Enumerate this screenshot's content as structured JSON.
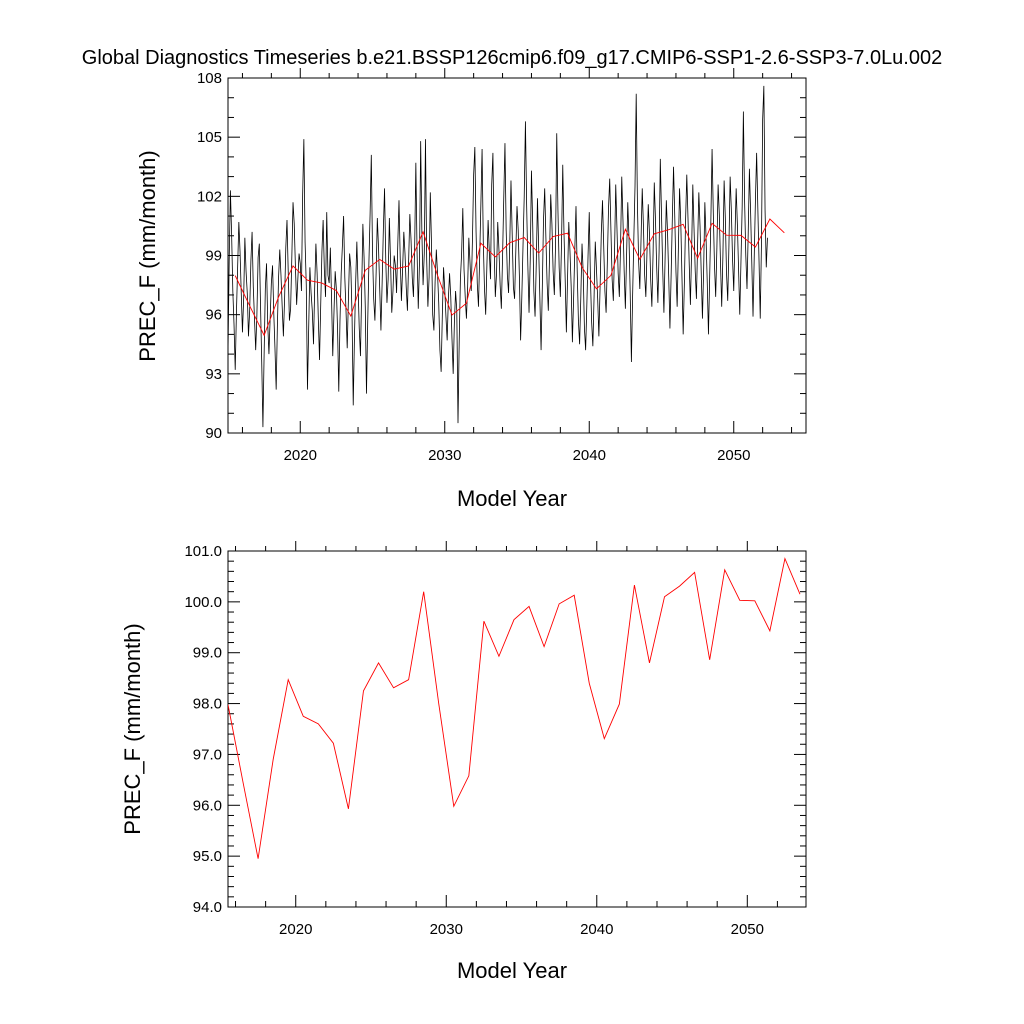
{
  "title": "Global Diagnostics Timeseries b.e21.BSSP126cmip6.f09_g17.CMIP6-SSP1-2.6-SSP3-7.0Lu.002",
  "colors": {
    "monthly": "#000000",
    "annual": "#ff0000",
    "axes": "#000000"
  },
  "chart_data": [
    {
      "type": "line",
      "title": "",
      "xlabel": "Model Year",
      "ylabel": "PREC_F (mm/month)",
      "xlim": [
        2015,
        2055
      ],
      "ylim": [
        90,
        108
      ],
      "grid": false,
      "xticks": [
        2020,
        2030,
        2040,
        2050
      ],
      "xtick_labels": [
        "2020",
        "2030",
        "2040",
        "2050"
      ],
      "yticks": [
        90,
        93,
        96,
        99,
        102,
        105,
        108
      ],
      "ytick_labels": [
        "90",
        "93",
        "96",
        "99",
        "102",
        "105",
        "108"
      ],
      "monthly_series": {
        "start_year": 2015,
        "step_years": 0.0833333,
        "values": [
          94.0,
          98.8,
          102.3,
          100.1,
          97.2,
          95.5,
          93.2,
          96.1,
          98.4,
          100.7,
          99.2,
          97.1,
          95.1,
          96.8,
          99.9,
          98.2,
          97.1,
          94.9,
          96.2,
          98.7,
          100.2,
          97.4,
          95.8,
          94.2,
          96.0,
          98.9,
          99.6,
          96.5,
          93.6,
          90.3,
          94.0,
          97.3,
          98.6,
          95.5,
          94.0,
          95.8,
          97.6,
          98.5,
          96.1,
          94.3,
          92.2,
          95.4,
          97.9,
          99.3,
          98.0,
          96.4,
          94.9,
          96.8,
          99.4,
          100.8,
          98.2,
          95.7,
          96.3,
          98.9,
          101.7,
          100.6,
          98.4,
          96.5,
          97.8,
          99.1,
          98.6,
          97.2,
          102.1,
          104.9,
          99.7,
          97.5,
          92.2,
          95.3,
          98.4,
          97.1,
          96.2,
          94.5,
          97.4,
          99.6,
          98.1,
          95.8,
          93.7,
          96.5,
          99.2,
          100.8,
          98.3,
          96.9,
          101.2,
          98.0,
          97.6,
          99.4,
          96.8,
          93.9,
          96.1,
          98.2,
          97.3,
          95.2,
          92.1,
          95.7,
          98.1,
          99.5,
          101.0,
          97.9,
          96.2,
          94.3,
          96.8,
          99.1,
          98.4,
          96.0,
          91.4,
          94.8,
          97.6,
          99.7,
          97.5,
          95.3,
          93.9,
          97.2,
          100.6,
          98.9,
          96.4,
          92.0,
          95.5,
          98.6,
          101.1,
          104.1,
          99.2,
          96.8,
          95.7,
          98.1,
          100.9,
          99.4,
          97.3,
          95.2,
          97.6,
          100.3,
          102.4,
          98.8,
          96.6,
          97.8,
          100.9,
          98.7,
          96.1,
          97.2,
          99.0,
          98.5,
          97.1,
          99.6,
          101.8,
          98.9,
          96.7,
          98.3,
          100.2,
          99.1,
          97.4,
          96.2,
          98.7,
          101.1,
          99.8,
          97.9,
          96.9,
          99.4,
          103.7,
          99.2,
          96.3,
          98.6,
          104.8,
          100.2,
          97.5,
          99.1,
          104.9,
          98.8,
          96.4,
          97.9,
          102.2,
          99.6,
          96.0,
          95.2,
          97.7,
          99.3,
          98.1,
          96.6,
          94.2,
          93.1,
          96.0,
          98.4,
          97.3,
          95.9,
          94.7,
          96.8,
          98.1,
          96.9,
          94.8,
          93.0,
          95.6,
          97.2,
          96.2,
          90.5,
          94.6,
          97.8,
          99.1,
          101.4,
          98.3,
          96.9,
          95.8,
          97.4,
          99.9,
          98.6,
          97.2,
          99.8,
          103.1,
          104.5,
          100.2,
          97.6,
          96.4,
          98.9,
          101.6,
          104.4,
          99.7,
          97.3,
          96.0,
          98.5,
          100.8,
          99.2,
          97.8,
          102.6,
          104.2,
          99.4,
          96.9,
          98.1,
          100.7,
          99.3,
          97.5,
          96.3,
          98.9,
          101.9,
          104.7,
          100.3,
          98.0,
          97.1,
          99.6,
          102.8,
          100.1,
          97.4,
          96.8,
          99.2,
          101.5,
          100.3,
          97.9,
          94.7,
          96.9,
          99.5,
          102.0,
          105.8,
          101.6,
          98.5,
          96.1,
          98.8,
          103.3,
          100.7,
          97.2,
          95.9,
          98.6,
          101.9,
          99.4,
          96.8,
          94.2,
          97.3,
          100.8,
          102.4,
          99.9,
          97.6,
          96.2,
          98.9,
          102.1,
          100.6,
          98.2,
          97.0,
          99.5,
          105.2,
          101.3,
          98.4,
          96.9,
          99.7,
          103.6,
          100.2,
          97.8,
          95.1,
          97.9,
          100.7,
          99.2,
          97.4,
          94.6,
          96.8,
          99.3,
          101.5,
          98.2,
          95.7,
          94.5,
          96.9,
          99.6,
          98.1,
          95.3,
          94.2,
          96.5,
          99.0,
          101.2,
          97.8,
          95.6,
          94.4,
          96.9,
          99.7,
          98.3,
          96.8,
          94.9,
          97.4,
          100.1,
          101.8,
          99.5,
          97.2,
          96.1,
          98.6,
          101.4,
          102.9,
          100.3,
          97.8,
          96.7,
          99.2,
          102.6,
          100.4,
          98.1,
          96.9,
          99.5,
          103.0,
          100.8,
          98.2,
          96.3,
          99.0,
          101.7,
          99.9,
          97.1,
          93.6,
          96.9,
          99.8,
          102.5,
          107.2,
          101.6,
          98.7,
          97.3,
          99.8,
          102.4,
          100.5,
          98.0,
          96.9,
          99.3,
          101.6,
          100.1,
          97.8,
          96.4,
          99.1,
          102.7,
          100.8,
          98.4,
          96.6,
          99.2,
          103.9,
          101.1,
          98.3,
          96.1,
          98.9,
          101.8,
          100.2,
          97.9,
          95.3,
          98.0,
          100.9,
          103.5,
          101.0,
          98.2,
          96.4,
          99.3,
          102.4,
          100.7,
          97.9,
          95.0,
          97.6,
          100.8,
          103.1,
          100.9,
          98.6,
          96.5,
          99.2,
          102.6,
          100.4,
          98.2,
          96.8,
          99.6,
          102.2,
          100.5,
          98.1,
          95.8,
          98.3,
          101.7,
          99.9,
          97.6,
          95.0,
          97.9,
          100.8,
          104.4,
          101.2,
          98.5,
          96.9,
          99.4,
          102.6,
          101.1,
          98.6,
          96.4,
          99.0,
          102.8,
          100.9,
          98.1,
          96.7,
          99.5,
          103.0,
          101.3,
          98.8,
          97.2,
          99.9,
          102.4,
          100.6,
          98.3,
          96.0,
          98.7,
          101.5,
          106.3,
          101.8,
          99.0,
          97.3,
          100.1,
          103.4,
          101.2,
          98.6,
          95.9,
          98.9,
          101.8,
          104.2,
          101.4,
          98.7,
          95.8,
          99.6,
          105.9,
          107.6,
          101.3,
          98.4,
          99.9
        ]
      },
      "annual_series": {
        "x": [
          2015.5,
          2016.5,
          2017.5,
          2018.5,
          2019.5,
          2020.5,
          2021.5,
          2022.5,
          2023.5,
          2024.5,
          2025.5,
          2026.5,
          2027.5,
          2028.5,
          2029.5,
          2030.5,
          2031.5,
          2032.5,
          2033.5,
          2034.5,
          2035.5,
          2036.5,
          2037.5,
          2038.5,
          2039.5,
          2040.5,
          2041.5,
          2042.5,
          2043.5,
          2044.5,
          2045.5,
          2046.5,
          2047.5,
          2048.5,
          2049.5,
          2050.5,
          2051.5,
          2052.5,
          2053.5
        ],
        "values": [
          97.98,
          96.45,
          94.95,
          96.9,
          98.47,
          97.75,
          97.6,
          97.22,
          95.93,
          98.25,
          98.8,
          98.31,
          98.47,
          100.2,
          98.0,
          95.98,
          96.58,
          99.62,
          98.93,
          99.65,
          99.91,
          99.12,
          99.96,
          100.13,
          98.4,
          97.31,
          97.99,
          100.33,
          98.8,
          100.1,
          100.31,
          100.58,
          98.86,
          100.63,
          100.03,
          100.02,
          99.43,
          100.85,
          100.15
        ]
      }
    },
    {
      "type": "line",
      "title": "",
      "xlabel": "Model Year",
      "ylabel": "PREC_F (mm/month)",
      "xlim": [
        2015.5,
        2053.9
      ],
      "ylim": [
        94,
        101
      ],
      "grid": false,
      "xticks": [
        2020,
        2030,
        2040,
        2050
      ],
      "xtick_labels": [
        "2020",
        "2030",
        "2040",
        "2050"
      ],
      "yticks": [
        94,
        95,
        96,
        97,
        98,
        99,
        100,
        101
      ],
      "ytick_labels": [
        "94.0",
        "95.0",
        "96.0",
        "97.0",
        "98.0",
        "99.0",
        "100.0",
        "101.0"
      ],
      "annual_series": {
        "x": [
          2015.5,
          2016.5,
          2017.5,
          2018.5,
          2019.5,
          2020.5,
          2021.5,
          2022.5,
          2023.5,
          2024.5,
          2025.5,
          2026.5,
          2027.5,
          2028.5,
          2029.5,
          2030.5,
          2031.5,
          2032.5,
          2033.5,
          2034.5,
          2035.5,
          2036.5,
          2037.5,
          2038.5,
          2039.5,
          2040.5,
          2041.5,
          2042.5,
          2043.5,
          2044.5,
          2045.5,
          2046.5,
          2047.5,
          2048.5,
          2049.5,
          2050.5,
          2051.5,
          2052.5,
          2053.5
        ],
        "values": [
          97.98,
          96.45,
          94.95,
          96.9,
          98.47,
          97.75,
          97.6,
          97.22,
          95.93,
          98.25,
          98.8,
          98.31,
          98.47,
          100.2,
          98.0,
          95.98,
          96.58,
          99.62,
          98.93,
          99.65,
          99.91,
          99.12,
          99.96,
          100.13,
          98.4,
          97.31,
          97.99,
          100.33,
          98.8,
          100.1,
          100.31,
          100.58,
          98.86,
          100.63,
          100.03,
          100.02,
          99.43,
          100.85,
          100.15
        ]
      }
    }
  ]
}
